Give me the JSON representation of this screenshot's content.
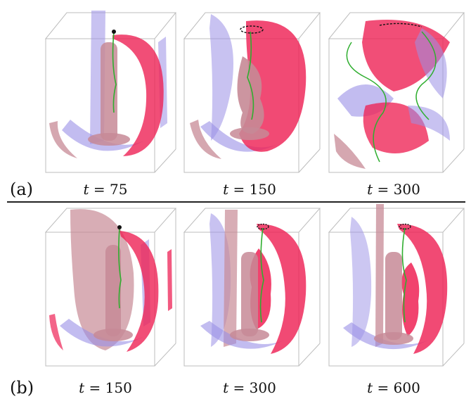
{
  "panels": [
    {
      "label": "(a)",
      "frames": [
        {
          "var": "t",
          "value": "75"
        },
        {
          "var": "t",
          "value": "150"
        },
        {
          "var": "t",
          "value": "300"
        }
      ]
    },
    {
      "label": "(b)",
      "frames": [
        {
          "var": "t",
          "value": "150"
        },
        {
          "var": "t",
          "value": "300"
        },
        {
          "var": "t",
          "value": "600"
        }
      ]
    }
  ],
  "equals_sign": "=",
  "colors": {
    "surface_red": "#ee2255",
    "surface_blue": "#9a90e6",
    "surface_mauve": "#c78a96",
    "filament_green": "#2fae2f",
    "box_edge": "#bbbbbb"
  }
}
